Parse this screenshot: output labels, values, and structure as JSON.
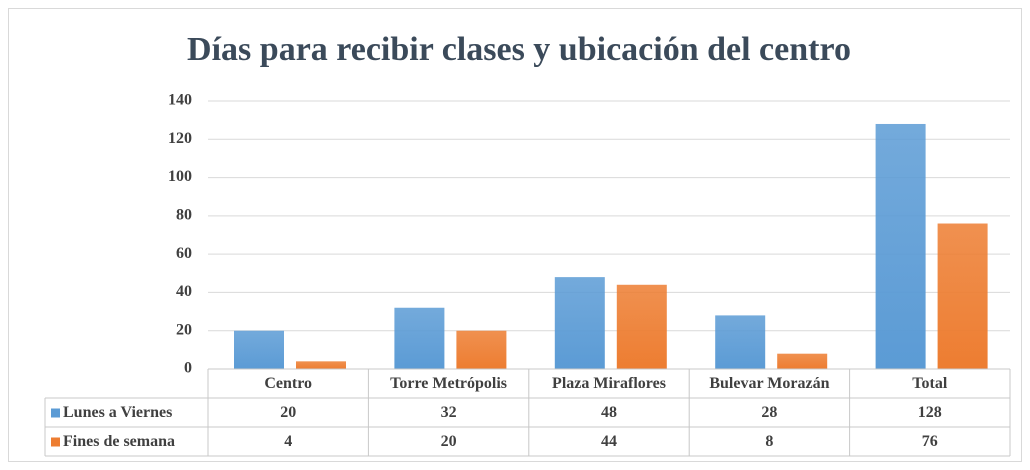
{
  "chart_data": {
    "type": "bar",
    "title": "Días para recibir clases y ubicación del centro",
    "categories": [
      "Centro",
      "Torre Metrópolis",
      "Plaza Miraflores",
      "Bulevar Morazán",
      "Total"
    ],
    "series": [
      {
        "name": "Lunes a Viernes",
        "color": "#5b9bd5",
        "values": [
          20,
          32,
          48,
          28,
          128
        ]
      },
      {
        "name": "Fines de semana",
        "color": "#ed7d31",
        "values": [
          4,
          20,
          44,
          8,
          76
        ]
      }
    ],
    "ylim": [
      0,
      140
    ],
    "yticks": [
      0,
      20,
      40,
      60,
      80,
      100,
      120,
      140
    ],
    "grid": true
  }
}
